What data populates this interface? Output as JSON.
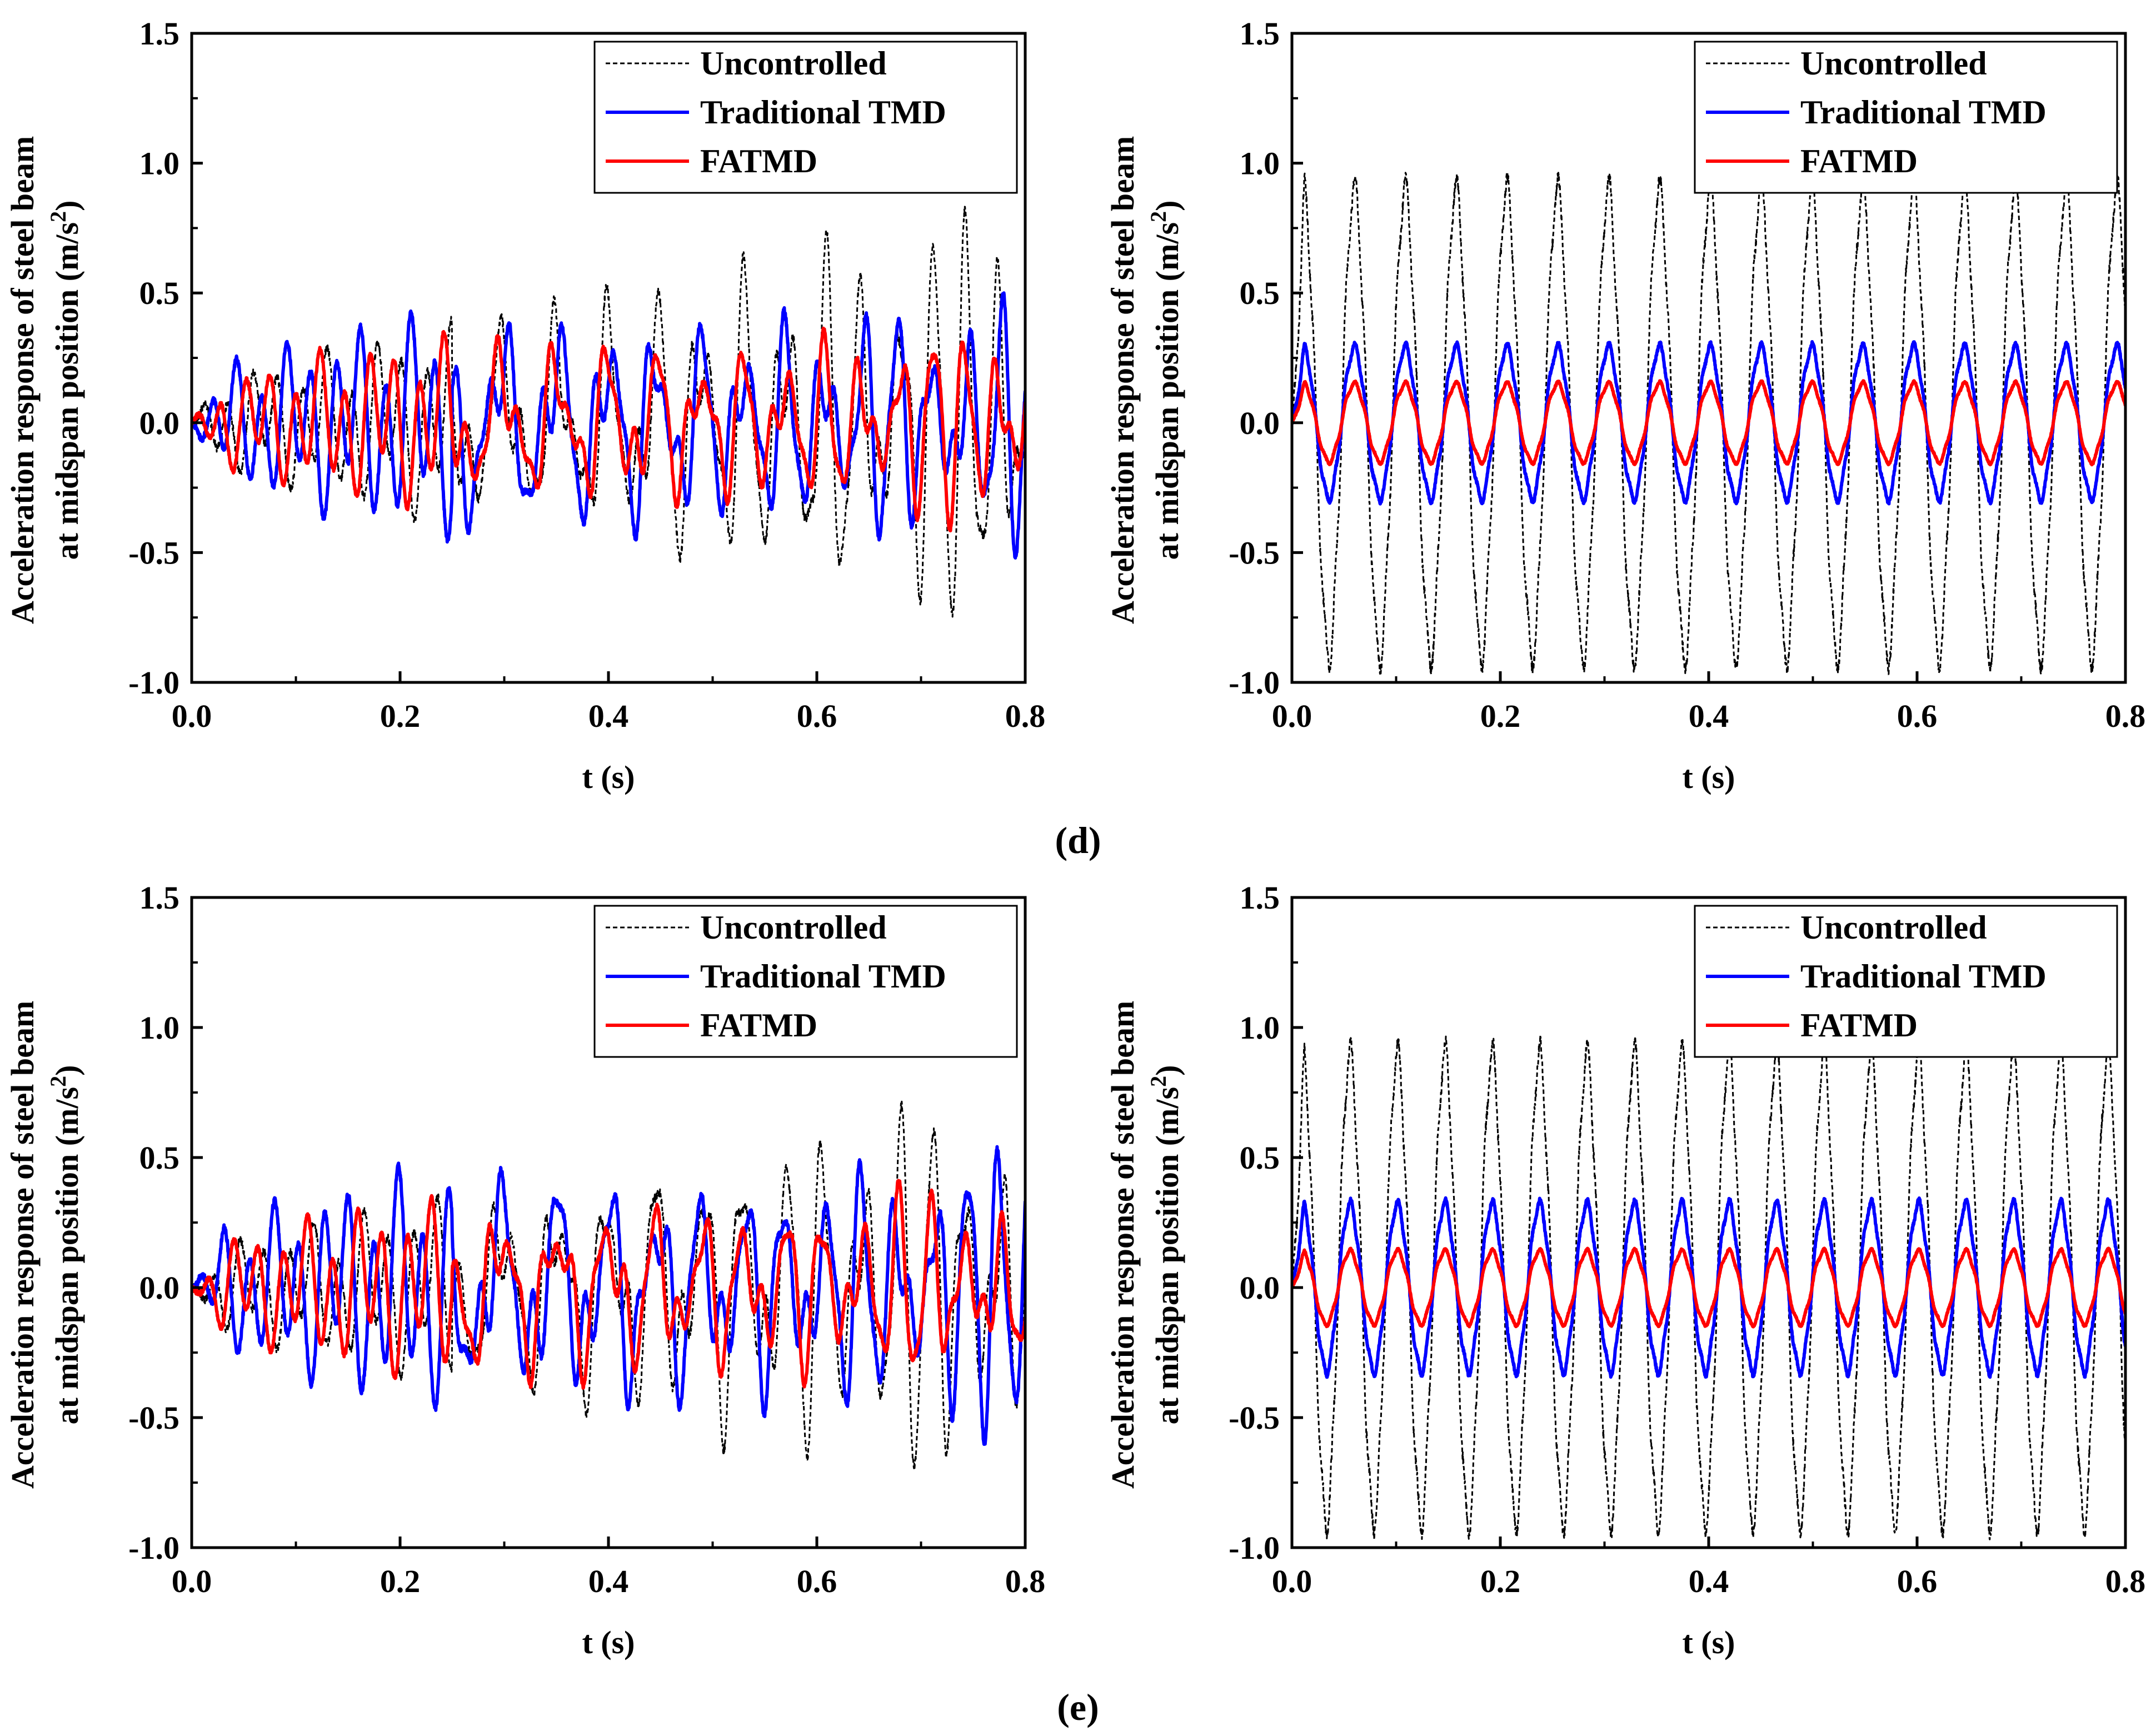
{
  "figure": {
    "caption_d": "(d)",
    "caption_e": "(e)"
  },
  "chart_data": [
    {
      "type": "line",
      "panel": "d-left",
      "xlabel": "t (s)",
      "ylabel_line1": "Acceleration response of steel beam",
      "ylabel_line2_prefix": "at midspan position (m/s",
      "ylabel_sup": "2",
      "ylabel_suffix": ")",
      "xlim": [
        0.0,
        0.8
      ],
      "ylim": [
        -1.0,
        1.5
      ],
      "xticks": [
        "0.0",
        "0.2",
        "0.4",
        "0.6",
        "0.8"
      ],
      "yticks": [
        "-1.0",
        "-0.5",
        "0.0",
        "0.5",
        "1.0",
        "1.5"
      ],
      "legend_position": "top-right",
      "mode": "transient",
      "series": [
        {
          "name": "Uncontrolled",
          "color": "#000000",
          "style": "dashed",
          "peak_abs": 0.9
        },
        {
          "name": "Traditional TMD",
          "color": "#0000ff",
          "style": "solid",
          "peak_abs": 0.58
        },
        {
          "name": "FATMD",
          "color": "#ff0000",
          "style": "solid",
          "peak_abs": 0.45
        }
      ]
    },
    {
      "type": "line",
      "panel": "d-right",
      "xlabel": "t (s)",
      "ylabel_line1": "Acceleration response of steel beam",
      "ylabel_line2_prefix": "at midspan position (m/s",
      "ylabel_sup": "2",
      "ylabel_suffix": ")",
      "xlim": [
        0.0,
        0.8
      ],
      "ylim": [
        -1.0,
        1.5
      ],
      "xticks": [
        "0.0",
        "0.2",
        "0.4",
        "0.6",
        "0.8"
      ],
      "yticks": [
        "-1.0",
        "-0.5",
        "0.0",
        "0.5",
        "1.0",
        "1.5"
      ],
      "legend_position": "top-right",
      "mode": "harmonic",
      "frequency_hz": 20.5,
      "series": [
        {
          "name": "Uncontrolled",
          "color": "#000000",
          "style": "dashed",
          "amplitude": 0.9
        },
        {
          "name": "Traditional TMD",
          "color": "#0000ff",
          "style": "solid",
          "amplitude": 0.29
        },
        {
          "name": "FATMD",
          "color": "#ff0000",
          "style": "solid",
          "amplitude": 0.15
        }
      ]
    },
    {
      "type": "line",
      "panel": "e-left",
      "xlabel": "t (s)",
      "ylabel_line1": "Acceleration response of steel beam",
      "ylabel_line2_prefix": "at midspan position (m/s",
      "ylabel_sup": "2",
      "ylabel_suffix": ")",
      "xlim": [
        0.0,
        0.8
      ],
      "ylim": [
        -1.0,
        1.5
      ],
      "xticks": [
        "0.0",
        "0.2",
        "0.4",
        "0.6",
        "0.8"
      ],
      "yticks": [
        "-1.0",
        "-0.5",
        "0.0",
        "0.5",
        "1.0",
        "1.5"
      ],
      "legend_position": "top-right",
      "mode": "transient",
      "series": [
        {
          "name": "Uncontrolled",
          "color": "#000000",
          "style": "dashed",
          "peak_abs": 0.85
        },
        {
          "name": "Traditional TMD",
          "color": "#0000ff",
          "style": "solid",
          "peak_abs": 0.63
        },
        {
          "name": "FATMD",
          "color": "#ff0000",
          "style": "solid",
          "peak_abs": 0.47
        }
      ]
    },
    {
      "type": "line",
      "panel": "e-right",
      "xlabel": "t (s)",
      "ylabel_line1": "Acceleration response of steel beam",
      "ylabel_line2_prefix": "at midspan position (m/s",
      "ylabel_sup": "2",
      "ylabel_suffix": ")",
      "xlim": [
        0.0,
        0.8
      ],
      "ylim": [
        -1.0,
        1.5
      ],
      "xticks": [
        "0.0",
        "0.2",
        "0.4",
        "0.6",
        "0.8"
      ],
      "yticks": [
        "-1.0",
        "-0.5",
        "0.0",
        "0.5",
        "1.0",
        "1.5"
      ],
      "legend_position": "top-right",
      "mode": "harmonic",
      "frequency_hz": 22.0,
      "series": [
        {
          "name": "Uncontrolled",
          "color": "#000000",
          "style": "dashed",
          "amplitude": 0.9
        },
        {
          "name": "Traditional TMD",
          "color": "#0000ff",
          "style": "solid",
          "amplitude": 0.32
        },
        {
          "name": "FATMD",
          "color": "#ff0000",
          "style": "solid",
          "amplitude": 0.14
        }
      ]
    }
  ]
}
